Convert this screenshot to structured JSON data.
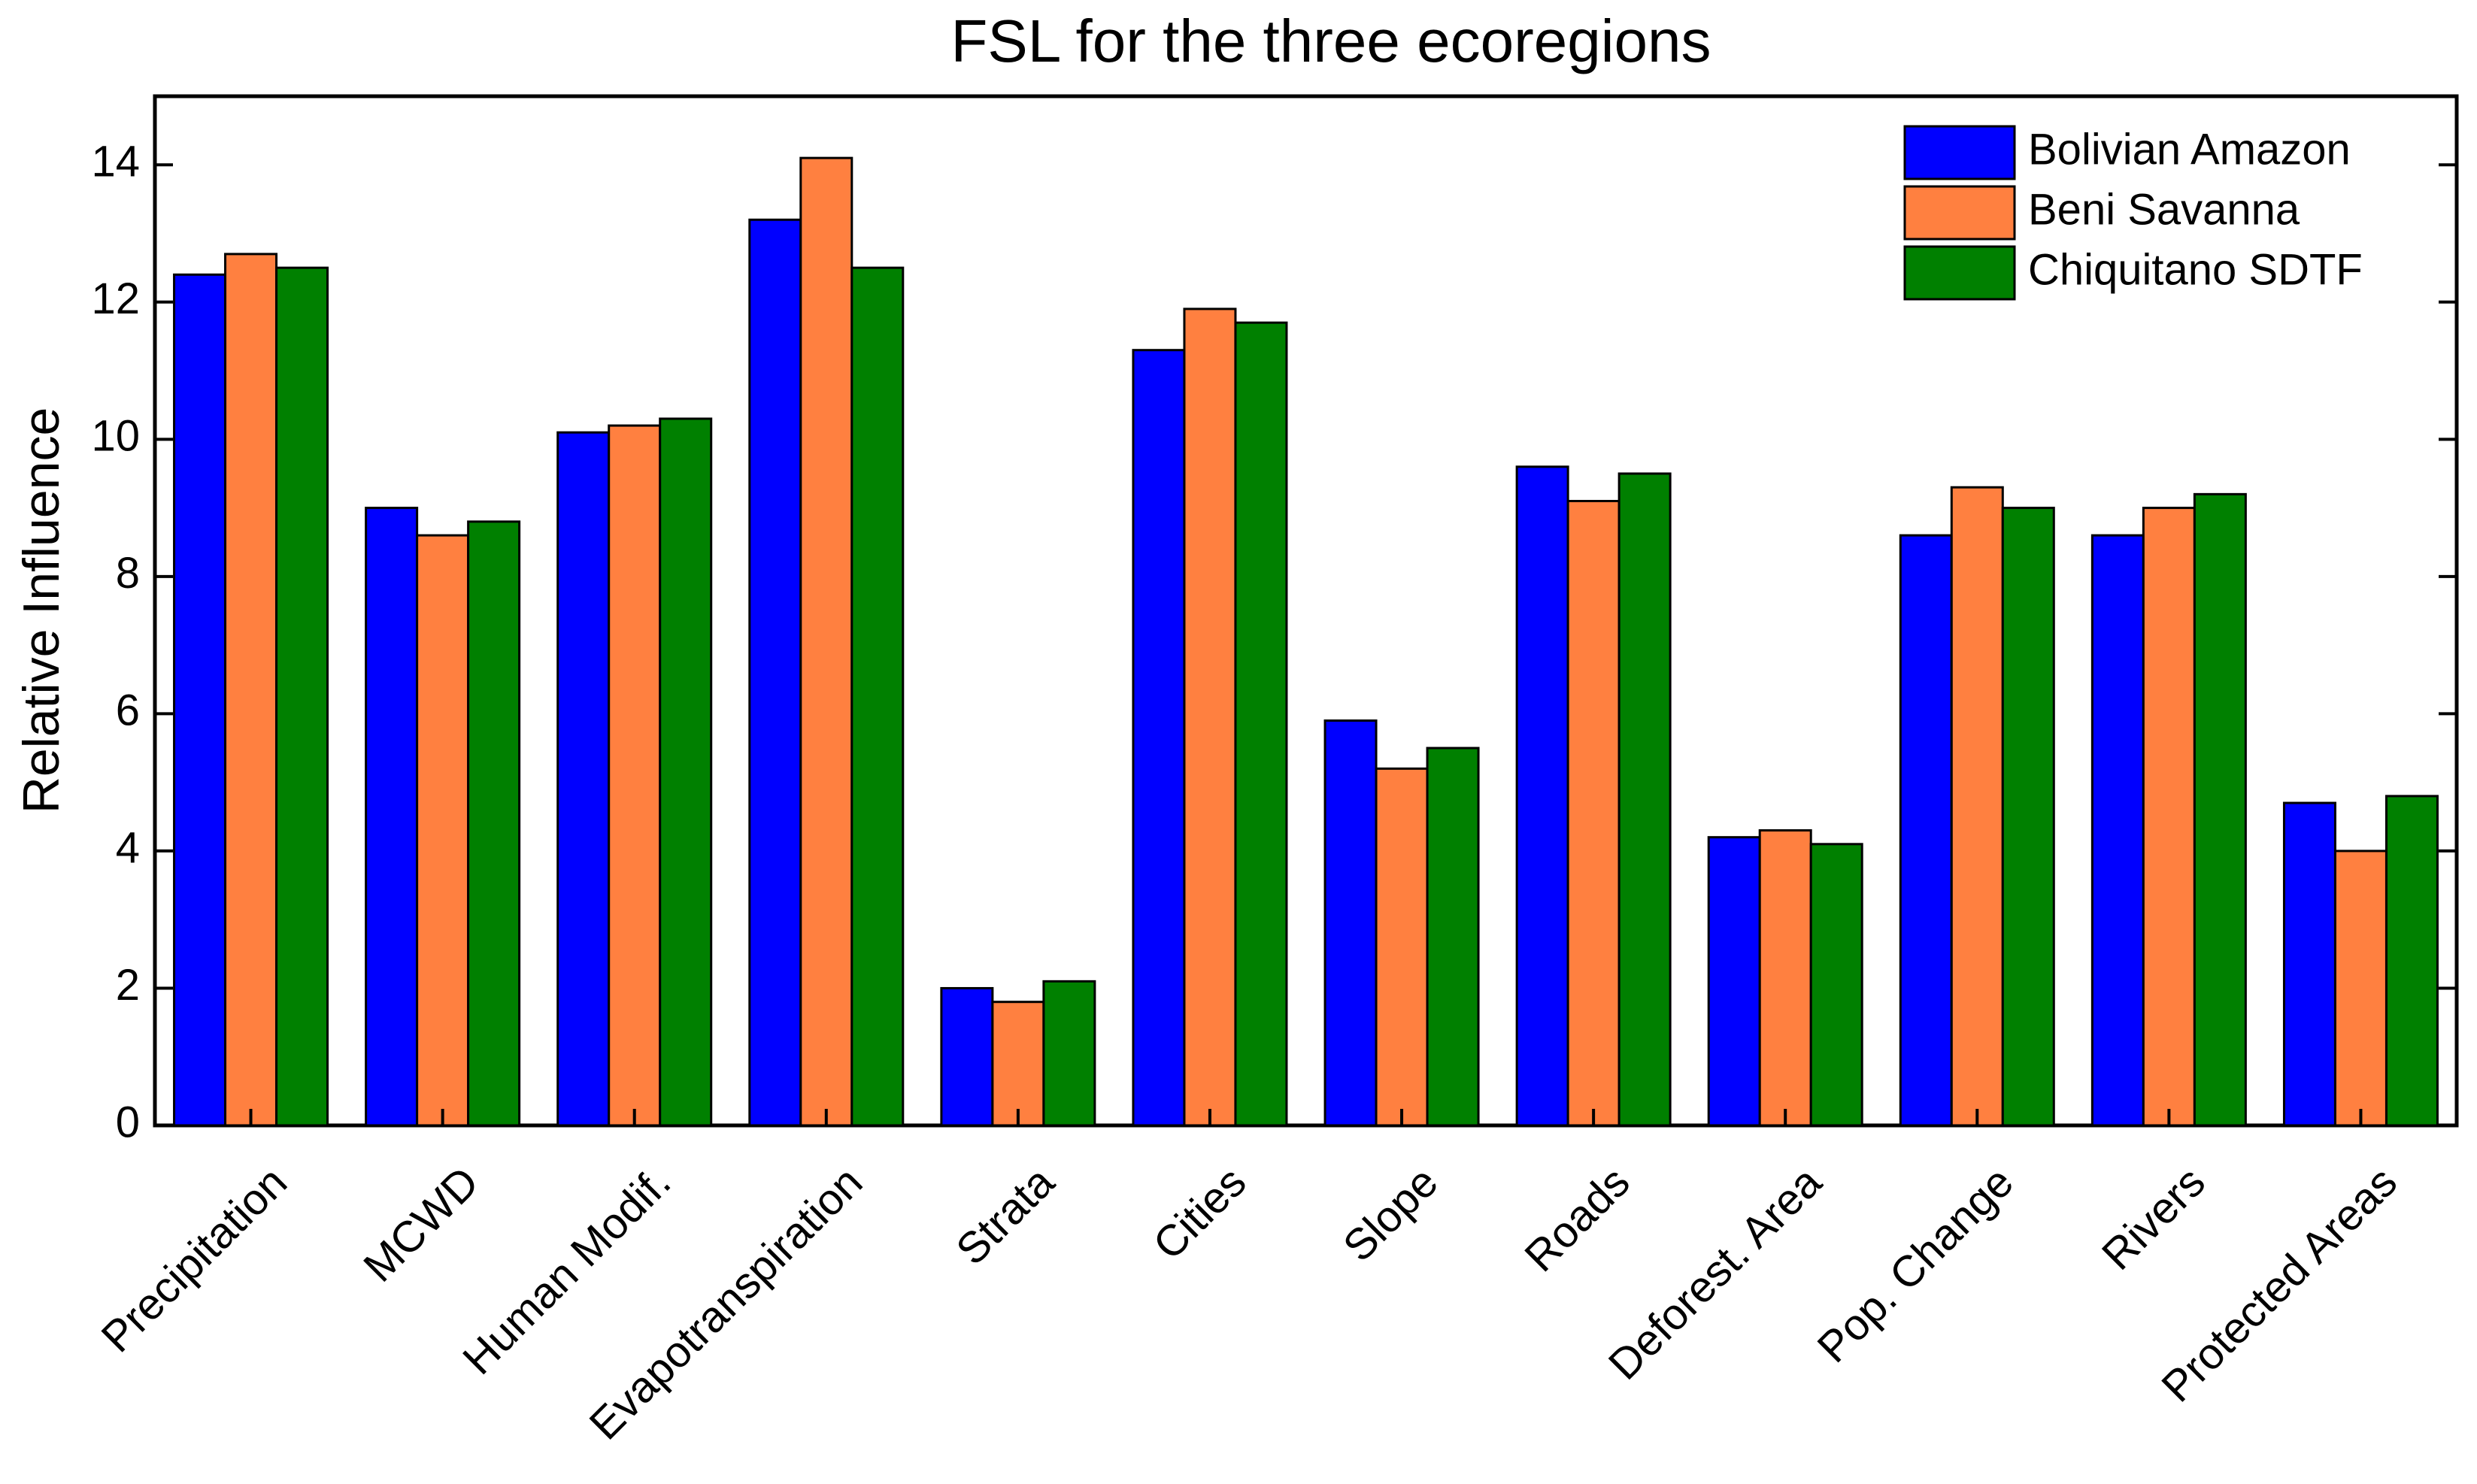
{
  "chart_data": {
    "type": "bar",
    "title": "FSL for the three ecoregions",
    "xlabel": "",
    "ylabel": "Relative Influence",
    "ylim": [
      0,
      15
    ],
    "yticks": [
      0,
      2,
      4,
      6,
      8,
      10,
      12,
      14
    ],
    "grid": false,
    "legend_position": "top-right",
    "categories": [
      "Precipitation",
      "MCWD",
      "Human Modif.",
      "Evapotranspiration",
      "Strata",
      "Cities",
      "Slope",
      "Roads",
      "Deforest. Area",
      "Pop. Change",
      "Rivers",
      "Protected Areas"
    ],
    "series": [
      {
        "name": "Bolivian Amazon",
        "color": "#0000ff",
        "values": [
          12.4,
          9.0,
          10.1,
          13.2,
          2.0,
          11.3,
          5.9,
          9.6,
          4.2,
          8.6,
          8.6,
          4.7
        ]
      },
      {
        "name": "Beni Savanna",
        "color": "#ff8040",
        "values": [
          12.7,
          8.6,
          10.2,
          14.1,
          1.8,
          11.9,
          5.2,
          9.1,
          4.3,
          9.3,
          9.0,
          4.0
        ]
      },
      {
        "name": "Chiquitano SDTF",
        "color": "#008000",
        "values": [
          12.5,
          8.8,
          10.3,
          12.5,
          2.1,
          11.7,
          5.5,
          9.5,
          4.1,
          9.0,
          9.2,
          4.8
        ]
      }
    ]
  }
}
